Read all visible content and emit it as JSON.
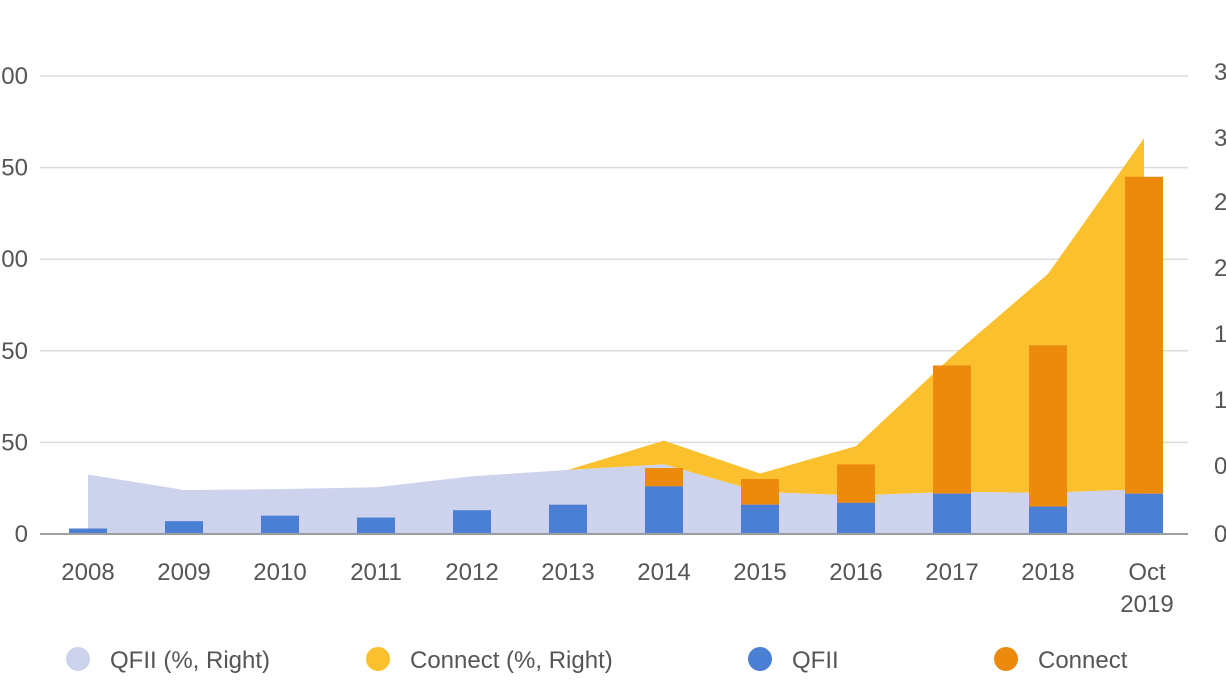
{
  "chart_data": {
    "type": "bar",
    "categories": [
      "2008",
      "2009",
      "2010",
      "2011",
      "2012",
      "2013",
      "2014",
      "2015",
      "2016",
      "2017",
      "2018",
      "Oct 2019"
    ],
    "y_left": {
      "ticks": [
        "0",
        "50",
        "50",
        "00",
        "50",
        "00"
      ],
      "tick_values": [
        0,
        50,
        100,
        150,
        200,
        250
      ],
      "ylim": [
        0,
        250
      ]
    },
    "y_right": {
      "ticks": [
        "0",
        "0",
        "1",
        "1",
        "2",
        "2",
        "3",
        "3"
      ]
    },
    "series": [
      {
        "name": "QFII (%, Right)",
        "type": "area",
        "color": "#cdd3ec",
        "values": [
          32.5,
          24,
          24.5,
          25.5,
          31.5,
          35,
          38,
          23,
          21,
          23,
          22.5,
          24.5
        ]
      },
      {
        "name": "Connect (%, Right)",
        "type": "area",
        "color": "#fbc02d",
        "values": [
          null,
          null,
          null,
          null,
          null,
          35,
          51,
          33,
          48,
          97,
          142,
          216
        ]
      },
      {
        "name": "QFII",
        "type": "bar",
        "color": "#4a7fd4",
        "values": [
          3,
          7,
          10,
          9,
          13,
          16,
          26,
          16,
          17,
          22,
          15,
          22
        ]
      },
      {
        "name": "Connect",
        "type": "bar",
        "color": "#ec8a0e",
        "stacked_on": "QFII",
        "values": [
          0,
          0,
          0,
          0,
          0,
          0,
          10,
          14,
          21,
          70,
          88,
          173
        ]
      }
    ],
    "grid": true,
    "legend_position": "bottom"
  }
}
